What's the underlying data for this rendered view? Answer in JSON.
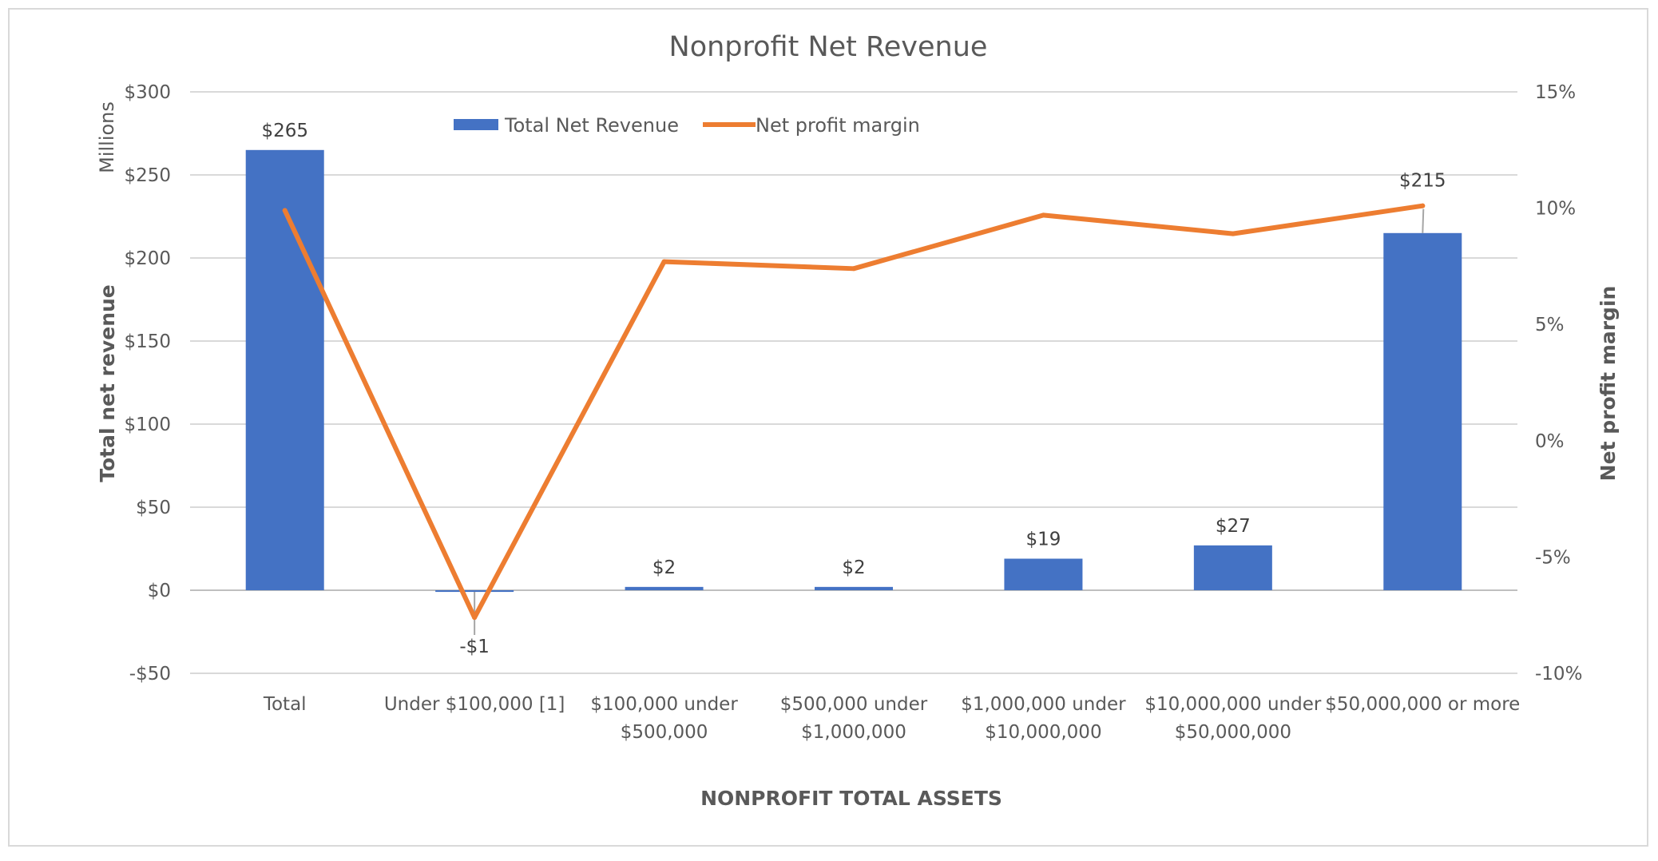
{
  "chart_data": {
    "type": "bar",
    "title": "Nonprofit Net Revenue",
    "xlabel": "NONPROFIT TOTAL ASSETS",
    "ylabel": "Total net revenue",
    "ylabel_units": "Millions",
    "y2label": "Net profit margin",
    "categories": [
      [
        "Total"
      ],
      [
        "Under $100,000 [1]"
      ],
      [
        "$100,000 under",
        "$500,000"
      ],
      [
        "$500,000 under",
        "$1,000,000"
      ],
      [
        "$1,000,000 under",
        "$10,000,000"
      ],
      [
        "$10,000,000 under",
        "$50,000,000"
      ],
      [
        "$50,000,000 or more"
      ]
    ],
    "ylim": [
      -50,
      300
    ],
    "yticks": [
      -50,
      0,
      50,
      100,
      150,
      200,
      250,
      300
    ],
    "ytick_labels": [
      "-$50",
      "$0",
      "$50",
      "$100",
      "$150",
      "$200",
      "$250",
      "$300"
    ],
    "y2lim": [
      -0.1,
      0.15
    ],
    "y2ticks": [
      -0.1,
      -0.05,
      0,
      0.05,
      0.1,
      0.15
    ],
    "y2tick_labels": [
      "-10%",
      "-5%",
      "0%",
      "5%",
      "10%",
      "15%"
    ],
    "grid": true,
    "legend_position": "top-center",
    "series": [
      {
        "name": "Total Net Revenue",
        "type": "bar",
        "axis": "left",
        "color": "#4472C4",
        "values": [
          265,
          -1,
          2,
          2,
          19,
          27,
          215
        ],
        "data_labels": [
          "$265",
          "-$1",
          "$2",
          "$2",
          "$19",
          "$27",
          "$215"
        ]
      },
      {
        "name": "Net profit margin",
        "type": "line",
        "axis": "right",
        "color": "#ED7D31",
        "values": [
          0.099,
          -0.076,
          0.077,
          0.074,
          0.097,
          0.089,
          0.101
        ]
      }
    ]
  }
}
